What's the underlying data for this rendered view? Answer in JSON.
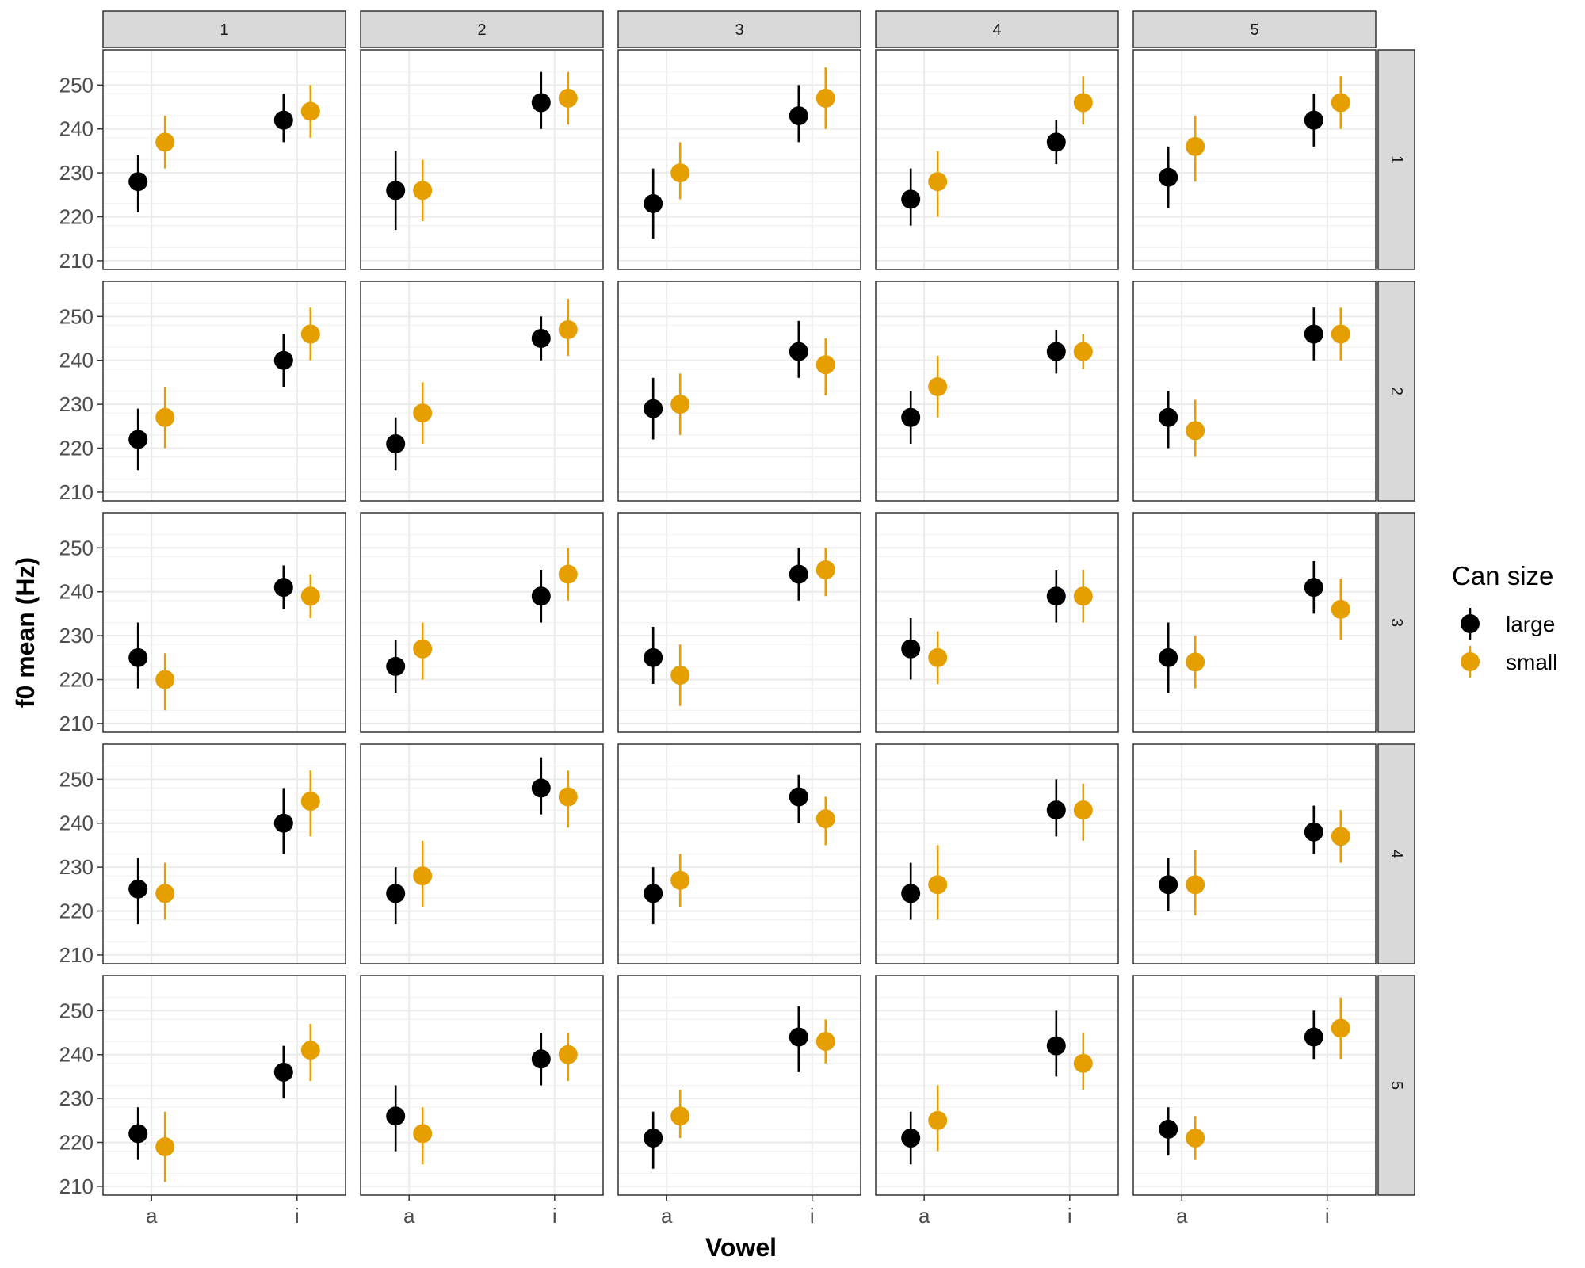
{
  "chart_data": {
    "type": "scatter",
    "subtype": "faceted point-range (mean with error bars)",
    "xlabel": "Vowel",
    "ylabel": "f0 mean (Hz)",
    "x_categories": [
      "a",
      "i"
    ],
    "ylim": [
      208,
      258
    ],
    "yticks": [
      210,
      220,
      230,
      240,
      250
    ],
    "grid": true,
    "column_facets": [
      "1",
      "2",
      "3",
      "4",
      "5"
    ],
    "row_facets": [
      "1",
      "2",
      "3",
      "4",
      "5"
    ],
    "legend": {
      "title": "Can size",
      "position": "right",
      "entries": [
        {
          "label": "large",
          "color": "#000000"
        },
        {
          "label": "small",
          "color": "#E69F00"
        }
      ]
    },
    "panels": [
      {
        "row": "1",
        "col": "1",
        "large": [
          {
            "x": "a",
            "y": 228,
            "lo": 221,
            "hi": 234
          },
          {
            "x": "i",
            "y": 242,
            "lo": 237,
            "hi": 248
          }
        ],
        "small": [
          {
            "x": "a",
            "y": 237,
            "lo": 231,
            "hi": 243
          },
          {
            "x": "i",
            "y": 244,
            "lo": 238,
            "hi": 250
          }
        ]
      },
      {
        "row": "1",
        "col": "2",
        "large": [
          {
            "x": "a",
            "y": 226,
            "lo": 217,
            "hi": 235
          },
          {
            "x": "i",
            "y": 246,
            "lo": 240,
            "hi": 253
          }
        ],
        "small": [
          {
            "x": "a",
            "y": 226,
            "lo": 219,
            "hi": 233
          },
          {
            "x": "i",
            "y": 247,
            "lo": 241,
            "hi": 253
          }
        ]
      },
      {
        "row": "1",
        "col": "3",
        "large": [
          {
            "x": "a",
            "y": 223,
            "lo": 215,
            "hi": 231
          },
          {
            "x": "i",
            "y": 243,
            "lo": 237,
            "hi": 250
          }
        ],
        "small": [
          {
            "x": "a",
            "y": 230,
            "lo": 224,
            "hi": 237
          },
          {
            "x": "i",
            "y": 247,
            "lo": 240,
            "hi": 254
          }
        ]
      },
      {
        "row": "1",
        "col": "4",
        "large": [
          {
            "x": "a",
            "y": 224,
            "lo": 218,
            "hi": 231
          },
          {
            "x": "i",
            "y": 237,
            "lo": 232,
            "hi": 242
          }
        ],
        "small": [
          {
            "x": "a",
            "y": 228,
            "lo": 220,
            "hi": 235
          },
          {
            "x": "i",
            "y": 246,
            "lo": 241,
            "hi": 252
          }
        ]
      },
      {
        "row": "1",
        "col": "5",
        "large": [
          {
            "x": "a",
            "y": 229,
            "lo": 222,
            "hi": 236
          },
          {
            "x": "i",
            "y": 242,
            "lo": 236,
            "hi": 248
          }
        ],
        "small": [
          {
            "x": "a",
            "y": 236,
            "lo": 228,
            "hi": 243
          },
          {
            "x": "i",
            "y": 246,
            "lo": 240,
            "hi": 252
          }
        ]
      },
      {
        "row": "2",
        "col": "1",
        "large": [
          {
            "x": "a",
            "y": 222,
            "lo": 215,
            "hi": 229
          },
          {
            "x": "i",
            "y": 240,
            "lo": 234,
            "hi": 246
          }
        ],
        "small": [
          {
            "x": "a",
            "y": 227,
            "lo": 220,
            "hi": 234
          },
          {
            "x": "i",
            "y": 246,
            "lo": 240,
            "hi": 252
          }
        ]
      },
      {
        "row": "2",
        "col": "2",
        "large": [
          {
            "x": "a",
            "y": 221,
            "lo": 215,
            "hi": 227
          },
          {
            "x": "i",
            "y": 245,
            "lo": 240,
            "hi": 250
          }
        ],
        "small": [
          {
            "x": "a",
            "y": 228,
            "lo": 221,
            "hi": 235
          },
          {
            "x": "i",
            "y": 247,
            "lo": 241,
            "hi": 254
          }
        ]
      },
      {
        "row": "2",
        "col": "3",
        "large": [
          {
            "x": "a",
            "y": 229,
            "lo": 222,
            "hi": 236
          },
          {
            "x": "i",
            "y": 242,
            "lo": 236,
            "hi": 249
          }
        ],
        "small": [
          {
            "x": "a",
            "y": 230,
            "lo": 223,
            "hi": 237
          },
          {
            "x": "i",
            "y": 239,
            "lo": 232,
            "hi": 245
          }
        ]
      },
      {
        "row": "2",
        "col": "4",
        "large": [
          {
            "x": "a",
            "y": 227,
            "lo": 221,
            "hi": 233
          },
          {
            "x": "i",
            "y": 242,
            "lo": 237,
            "hi": 247
          }
        ],
        "small": [
          {
            "x": "a",
            "y": 234,
            "lo": 227,
            "hi": 241
          },
          {
            "x": "i",
            "y": 242,
            "lo": 238,
            "hi": 246
          }
        ]
      },
      {
        "row": "2",
        "col": "5",
        "large": [
          {
            "x": "a",
            "y": 227,
            "lo": 220,
            "hi": 233
          },
          {
            "x": "i",
            "y": 246,
            "lo": 240,
            "hi": 252
          }
        ],
        "small": [
          {
            "x": "a",
            "y": 224,
            "lo": 218,
            "hi": 231
          },
          {
            "x": "i",
            "y": 246,
            "lo": 240,
            "hi": 252
          }
        ]
      },
      {
        "row": "3",
        "col": "1",
        "large": [
          {
            "x": "a",
            "y": 225,
            "lo": 218,
            "hi": 233
          },
          {
            "x": "i",
            "y": 241,
            "lo": 236,
            "hi": 246
          }
        ],
        "small": [
          {
            "x": "a",
            "y": 220,
            "lo": 213,
            "hi": 226
          },
          {
            "x": "i",
            "y": 239,
            "lo": 234,
            "hi": 244
          }
        ]
      },
      {
        "row": "3",
        "col": "2",
        "large": [
          {
            "x": "a",
            "y": 223,
            "lo": 217,
            "hi": 229
          },
          {
            "x": "i",
            "y": 239,
            "lo": 233,
            "hi": 245
          }
        ],
        "small": [
          {
            "x": "a",
            "y": 227,
            "lo": 220,
            "hi": 233
          },
          {
            "x": "i",
            "y": 244,
            "lo": 238,
            "hi": 250
          }
        ]
      },
      {
        "row": "3",
        "col": "3",
        "large": [
          {
            "x": "a",
            "y": 225,
            "lo": 219,
            "hi": 232
          },
          {
            "x": "i",
            "y": 244,
            "lo": 238,
            "hi": 250
          }
        ],
        "small": [
          {
            "x": "a",
            "y": 221,
            "lo": 214,
            "hi": 228
          },
          {
            "x": "i",
            "y": 245,
            "lo": 239,
            "hi": 250
          }
        ]
      },
      {
        "row": "3",
        "col": "4",
        "large": [
          {
            "x": "a",
            "y": 227,
            "lo": 220,
            "hi": 234
          },
          {
            "x": "i",
            "y": 239,
            "lo": 233,
            "hi": 245
          }
        ],
        "small": [
          {
            "x": "a",
            "y": 225,
            "lo": 219,
            "hi": 231
          },
          {
            "x": "i",
            "y": 239,
            "lo": 233,
            "hi": 245
          }
        ]
      },
      {
        "row": "3",
        "col": "5",
        "large": [
          {
            "x": "a",
            "y": 225,
            "lo": 217,
            "hi": 233
          },
          {
            "x": "i",
            "y": 241,
            "lo": 235,
            "hi": 247
          }
        ],
        "small": [
          {
            "x": "a",
            "y": 224,
            "lo": 218,
            "hi": 230
          },
          {
            "x": "i",
            "y": 236,
            "lo": 229,
            "hi": 243
          }
        ]
      },
      {
        "row": "4",
        "col": "1",
        "large": [
          {
            "x": "a",
            "y": 225,
            "lo": 217,
            "hi": 232
          },
          {
            "x": "i",
            "y": 240,
            "lo": 233,
            "hi": 248
          }
        ],
        "small": [
          {
            "x": "a",
            "y": 224,
            "lo": 218,
            "hi": 231
          },
          {
            "x": "i",
            "y": 245,
            "lo": 237,
            "hi": 252
          }
        ]
      },
      {
        "row": "4",
        "col": "2",
        "large": [
          {
            "x": "a",
            "y": 224,
            "lo": 217,
            "hi": 230
          },
          {
            "x": "i",
            "y": 248,
            "lo": 242,
            "hi": 255
          }
        ],
        "small": [
          {
            "x": "a",
            "y": 228,
            "lo": 221,
            "hi": 236
          },
          {
            "x": "i",
            "y": 246,
            "lo": 239,
            "hi": 252
          }
        ]
      },
      {
        "row": "4",
        "col": "3",
        "large": [
          {
            "x": "a",
            "y": 224,
            "lo": 217,
            "hi": 230
          },
          {
            "x": "i",
            "y": 246,
            "lo": 240,
            "hi": 251
          }
        ],
        "small": [
          {
            "x": "a",
            "y": 227,
            "lo": 221,
            "hi": 233
          },
          {
            "x": "i",
            "y": 241,
            "lo": 235,
            "hi": 246
          }
        ]
      },
      {
        "row": "4",
        "col": "4",
        "large": [
          {
            "x": "a",
            "y": 224,
            "lo": 218,
            "hi": 231
          },
          {
            "x": "i",
            "y": 243,
            "lo": 237,
            "hi": 250
          }
        ],
        "small": [
          {
            "x": "a",
            "y": 226,
            "lo": 218,
            "hi": 235
          },
          {
            "x": "i",
            "y": 243,
            "lo": 236,
            "hi": 249
          }
        ]
      },
      {
        "row": "4",
        "col": "5",
        "large": [
          {
            "x": "a",
            "y": 226,
            "lo": 220,
            "hi": 232
          },
          {
            "x": "i",
            "y": 238,
            "lo": 233,
            "hi": 244
          }
        ],
        "small": [
          {
            "x": "a",
            "y": 226,
            "lo": 219,
            "hi": 234
          },
          {
            "x": "i",
            "y": 237,
            "lo": 231,
            "hi": 243
          }
        ]
      },
      {
        "row": "5",
        "col": "1",
        "large": [
          {
            "x": "a",
            "y": 222,
            "lo": 216,
            "hi": 228
          },
          {
            "x": "i",
            "y": 236,
            "lo": 230,
            "hi": 242
          }
        ],
        "small": [
          {
            "x": "a",
            "y": 219,
            "lo": 211,
            "hi": 227
          },
          {
            "x": "i",
            "y": 241,
            "lo": 234,
            "hi": 247
          }
        ]
      },
      {
        "row": "5",
        "col": "2",
        "large": [
          {
            "x": "a",
            "y": 226,
            "lo": 218,
            "hi": 233
          },
          {
            "x": "i",
            "y": 239,
            "lo": 233,
            "hi": 245
          }
        ],
        "small": [
          {
            "x": "a",
            "y": 222,
            "lo": 215,
            "hi": 228
          },
          {
            "x": "i",
            "y": 240,
            "lo": 234,
            "hi": 245
          }
        ]
      },
      {
        "row": "5",
        "col": "3",
        "large": [
          {
            "x": "a",
            "y": 221,
            "lo": 214,
            "hi": 227
          },
          {
            "x": "i",
            "y": 244,
            "lo": 236,
            "hi": 251
          }
        ],
        "small": [
          {
            "x": "a",
            "y": 226,
            "lo": 221,
            "hi": 232
          },
          {
            "x": "i",
            "y": 243,
            "lo": 238,
            "hi": 248
          }
        ]
      },
      {
        "row": "5",
        "col": "4",
        "large": [
          {
            "x": "a",
            "y": 221,
            "lo": 215,
            "hi": 227
          },
          {
            "x": "i",
            "y": 242,
            "lo": 235,
            "hi": 250
          }
        ],
        "small": [
          {
            "x": "a",
            "y": 225,
            "lo": 218,
            "hi": 233
          },
          {
            "x": "i",
            "y": 238,
            "lo": 232,
            "hi": 245
          }
        ]
      },
      {
        "row": "5",
        "col": "5",
        "large": [
          {
            "x": "a",
            "y": 223,
            "lo": 217,
            "hi": 228
          },
          {
            "x": "i",
            "y": 244,
            "lo": 239,
            "hi": 250
          }
        ],
        "small": [
          {
            "x": "a",
            "y": 221,
            "lo": 216,
            "hi": 226
          },
          {
            "x": "i",
            "y": 246,
            "lo": 239,
            "hi": 253
          }
        ]
      }
    ]
  }
}
